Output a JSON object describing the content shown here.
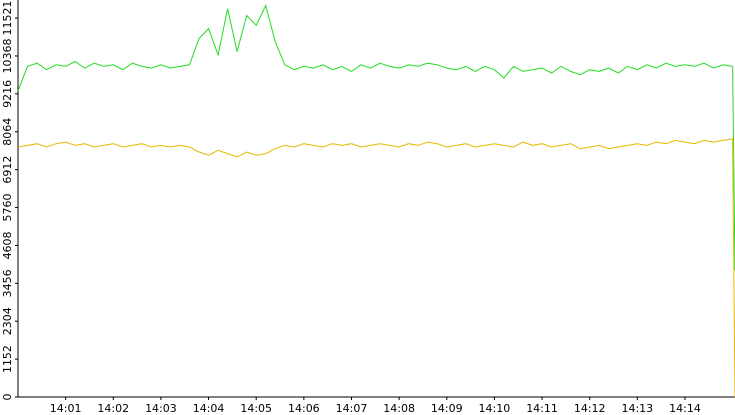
{
  "chart_data": {
    "type": "line",
    "x": [
      0,
      0.2,
      0.4,
      0.6,
      0.8,
      1,
      1.2,
      1.4,
      1.6,
      1.8,
      2,
      2.2,
      2.4,
      2.6,
      2.8,
      3,
      3.2,
      3.4,
      3.6,
      3.8,
      4,
      4.2,
      4.4,
      4.6,
      4.8,
      5,
      5.2,
      5.4,
      5.6,
      5.8,
      6,
      6.2,
      6.4,
      6.6,
      6.8,
      7,
      7.2,
      7.4,
      7.6,
      7.8,
      8,
      8.2,
      8.4,
      8.6,
      8.8,
      9,
      9.2,
      9.4,
      9.6,
      9.8,
      10,
      10.2,
      10.4,
      10.6,
      10.8,
      11,
      11.2,
      11.4,
      11.6,
      11.8,
      12,
      12.2,
      12.4,
      12.6,
      12.8,
      13,
      13.2,
      13.4,
      13.6,
      13.8,
      14,
      14.2,
      14.4,
      14.6,
      14.8,
      15,
      15.05
    ],
    "series": [
      {
        "color": "#22dd22",
        "values": [
          9300,
          10050,
          10150,
          9950,
          10100,
          10050,
          10200,
          10000,
          10150,
          10050,
          10100,
          9950,
          10150,
          10050,
          10000,
          10100,
          10000,
          10050,
          10100,
          10900,
          11200,
          10400,
          11800,
          10500,
          11600,
          11300,
          11900,
          10800,
          10100,
          9950,
          10050,
          10000,
          10100,
          9950,
          10050,
          9900,
          10100,
          10000,
          10150,
          10050,
          10000,
          10100,
          10050,
          10150,
          10100,
          10000,
          9950,
          10050,
          9900,
          10050,
          9950,
          9700,
          10050,
          9900,
          9950,
          10000,
          9850,
          10050,
          9900,
          9800,
          9950,
          9900,
          10000,
          9850,
          10050,
          9950,
          10100,
          10000,
          10150,
          10050,
          10100,
          10050,
          10150,
          10000,
          10100,
          10050,
          3850
        ]
      },
      {
        "color": "#e8b800",
        "values": [
          7600,
          7650,
          7700,
          7600,
          7700,
          7750,
          7650,
          7700,
          7600,
          7650,
          7700,
          7600,
          7650,
          7700,
          7600,
          7650,
          7600,
          7650,
          7600,
          7450,
          7350,
          7500,
          7400,
          7300,
          7450,
          7350,
          7400,
          7550,
          7650,
          7600,
          7700,
          7650,
          7600,
          7700,
          7650,
          7700,
          7600,
          7650,
          7700,
          7650,
          7600,
          7700,
          7650,
          7750,
          7700,
          7600,
          7650,
          7700,
          7600,
          7650,
          7700,
          7650,
          7600,
          7750,
          7650,
          7700,
          7600,
          7650,
          7700,
          7550,
          7600,
          7650,
          7550,
          7600,
          7650,
          7700,
          7650,
          7750,
          7700,
          7800,
          7750,
          7700,
          7800,
          7750,
          7800,
          7850,
          0
        ]
      }
    ],
    "xlim": [
      0,
      15.05
    ],
    "xticks": [
      {
        "value": 1,
        "label": "14:01"
      },
      {
        "value": 2,
        "label": "14:02"
      },
      {
        "value": 3,
        "label": "14:03"
      },
      {
        "value": 4,
        "label": "14:04"
      },
      {
        "value": 5,
        "label": "14:05"
      },
      {
        "value": 6,
        "label": "14:06"
      },
      {
        "value": 7,
        "label": "14:07"
      },
      {
        "value": 8,
        "label": "14:08"
      },
      {
        "value": 9,
        "label": "14:09"
      },
      {
        "value": 10,
        "label": "14:10"
      },
      {
        "value": 11,
        "label": "14:11"
      },
      {
        "value": 12,
        "label": "14:12"
      },
      {
        "value": 13,
        "label": "14:13"
      },
      {
        "value": 14,
        "label": "14:14"
      }
    ],
    "ylim": [
      0,
      12070
    ],
    "yticks": [
      0,
      1152,
      2304,
      3456,
      4608,
      5760,
      6912,
      8064,
      9216,
      10368,
      11521
    ]
  }
}
